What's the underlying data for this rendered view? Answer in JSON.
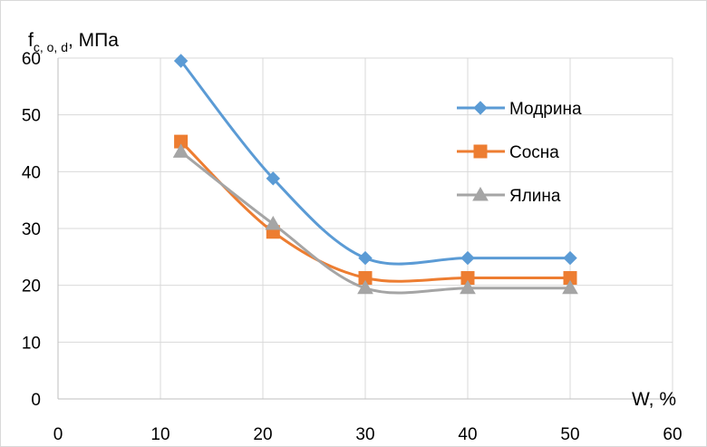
{
  "chart_data": {
    "type": "line",
    "smooth": true,
    "ylabel_main": "f",
    "ylabel_sub": "c, o, d",
    "ylabel_unit": ", МПа",
    "xlabel": "W, %",
    "xlim": [
      0,
      60
    ],
    "ylim": [
      0,
      60
    ],
    "xticks": [
      "0",
      "10",
      "20",
      "30",
      "40",
      "50",
      "60"
    ],
    "yticks": [
      "0",
      "10",
      "20",
      "30",
      "40",
      "50",
      "60"
    ],
    "grid": true,
    "legend_position": "right",
    "series": [
      {
        "name": "Модрина",
        "color": "#5b9bd5",
        "marker": "diamond",
        "x": [
          12,
          21,
          30,
          40,
          50
        ],
        "y": [
          59.5,
          38.8,
          24.8,
          24.8,
          24.8
        ]
      },
      {
        "name": "Сосна",
        "color": "#ed7d31",
        "marker": "square",
        "x": [
          12,
          21,
          30,
          40,
          50
        ],
        "y": [
          45.3,
          29.4,
          21.3,
          21.3,
          21.3
        ]
      },
      {
        "name": "Ялина",
        "color": "#a5a5a5",
        "marker": "triangle",
        "x": [
          12,
          21,
          30,
          40,
          50
        ],
        "y": [
          43.5,
          30.8,
          19.5,
          19.5,
          19.5
        ]
      }
    ]
  }
}
